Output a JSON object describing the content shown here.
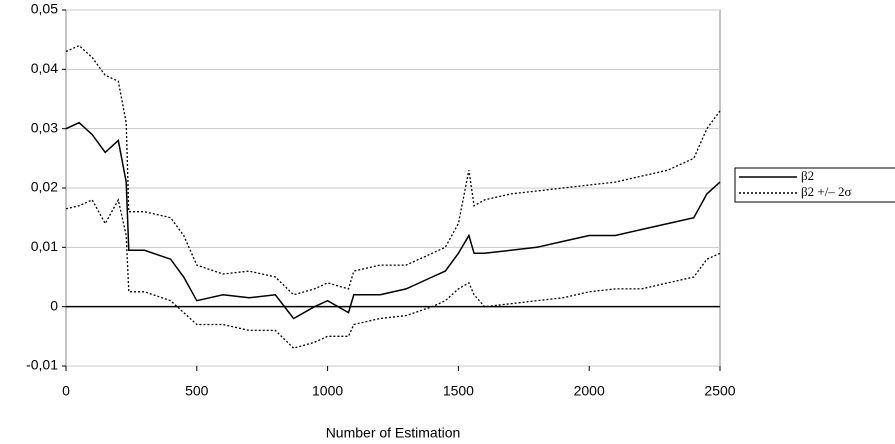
{
  "chart_data": {
    "type": "line",
    "x_label": "Number of Estimation",
    "x": [
      0,
      50,
      100,
      150,
      200,
      230,
      240,
      300,
      400,
      450,
      500,
      600,
      700,
      800,
      870,
      950,
      1000,
      1080,
      1100,
      1200,
      1300,
      1400,
      1450,
      1500,
      1540,
      1560,
      1600,
      1700,
      1800,
      1900,
      2000,
      2100,
      2200,
      2300,
      2400,
      2450,
      2500
    ],
    "series": [
      {
        "name": "β2",
        "color": "#000000",
        "dash": "solid",
        "values": [
          0.03,
          0.031,
          0.029,
          0.026,
          0.028,
          0.021,
          0.0095,
          0.0095,
          0.008,
          0.005,
          0.001,
          0.002,
          0.0015,
          0.002,
          -0.002,
          0,
          0.001,
          -0.001,
          0.002,
          0.002,
          0.003,
          0.005,
          0.006,
          0.009,
          0.012,
          0.009,
          0.009,
          0.0095,
          0.01,
          0.011,
          0.012,
          0.012,
          0.013,
          0.014,
          0.015,
          0.019,
          0.021
        ]
      },
      {
        "name": "β2 +/– 2σ",
        "color": "#000000",
        "dash": "dotted",
        "upper": [
          0.043,
          0.044,
          0.042,
          0.039,
          0.038,
          0.031,
          0.016,
          0.016,
          0.015,
          0.012,
          0.007,
          0.0055,
          0.006,
          0.005,
          0.002,
          0.003,
          0.004,
          0.003,
          0.006,
          0.007,
          0.007,
          0.009,
          0.01,
          0.014,
          0.023,
          0.017,
          0.018,
          0.019,
          0.0195,
          0.02,
          0.0205,
          0.021,
          0.022,
          0.023,
          0.025,
          0.03,
          0.033
        ],
        "lower": [
          0.0165,
          0.017,
          0.018,
          0.014,
          0.018,
          0.012,
          0.0025,
          0.0025,
          0.001,
          -0.001,
          -0.003,
          -0.003,
          -0.004,
          -0.004,
          -0.007,
          -0.006,
          -0.005,
          -0.005,
          -0.003,
          -0.002,
          -0.0015,
          0,
          0.001,
          0.003,
          0.004,
          0.002,
          0,
          0.0005,
          0.001,
          0.0015,
          0.0025,
          0.003,
          0.003,
          0.004,
          0.005,
          0.008,
          0.009
        ]
      }
    ],
    "xlim": [
      0,
      2500
    ],
    "xticks": [
      0,
      500,
      1000,
      1500,
      2000,
      2500
    ],
    "ylim": [
      -0.01,
      0.05
    ],
    "yticks": [
      {
        "value": -0.01,
        "label": "-0,01"
      },
      0,
      {
        "value": 0.01,
        "label": "0,01"
      },
      {
        "value": 0.02,
        "label": "0,02"
      },
      {
        "value": 0.03,
        "label": "0,03"
      },
      {
        "value": 0.04,
        "label": "0,04"
      },
      {
        "value": 0.05,
        "label": "0,05"
      }
    ],
    "grid": true,
    "legend": "right"
  }
}
